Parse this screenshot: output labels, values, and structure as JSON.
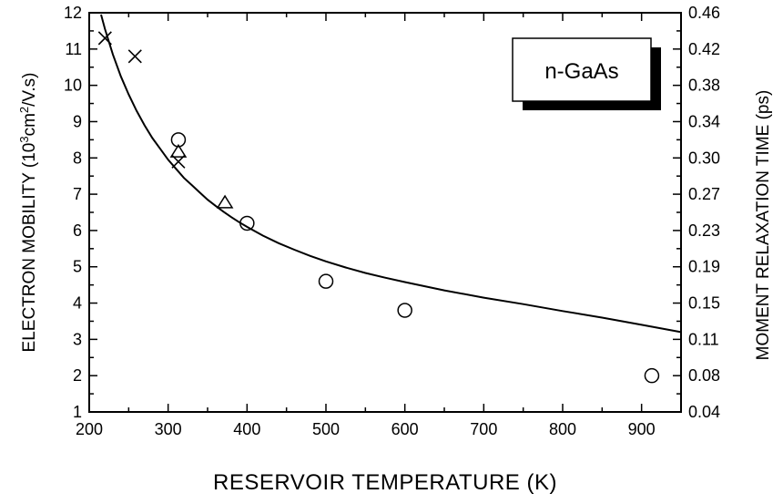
{
  "chart_data": {
    "type": "scatter",
    "legend_box": {
      "text": "n-GaAs",
      "position": "top-right"
    },
    "x_axis": {
      "label": "RESERVOIR TEMPERATURE (K)",
      "range": [
        200,
        950
      ],
      "ticks": [
        200,
        300,
        400,
        500,
        600,
        700,
        800,
        900
      ]
    },
    "y_axis_left": {
      "label_prefix": "ELECTRON MOBILITY (10",
      "label_sup1": "3",
      "label_mid": "cm",
      "label_sup2": "2",
      "label_suffix": "/V.s)",
      "range": [
        1,
        12
      ],
      "ticks": [
        1,
        2,
        3,
        4,
        5,
        6,
        7,
        8,
        9,
        10,
        11,
        12
      ]
    },
    "y_axis_right": {
      "label": "MOMENT RELAXATION TIME (ps)",
      "tick_labels": [
        "0.04",
        "0.08",
        "0.11",
        "0.15",
        "0.19",
        "0.23",
        "0.27",
        "0.30",
        "0.34",
        "0.38",
        "0.42",
        "0.46"
      ]
    },
    "grid": false,
    "series": [
      {
        "marker": "cross",
        "points": [
          [
            220,
            11.3
          ],
          [
            258,
            10.8
          ],
          [
            313,
            7.9
          ]
        ]
      },
      {
        "marker": "circle",
        "points": [
          [
            313,
            8.5
          ],
          [
            400,
            6.2
          ],
          [
            500,
            4.6
          ],
          [
            600,
            3.8
          ],
          [
            913,
            2.0
          ]
        ]
      },
      {
        "marker": "triangle",
        "points": [
          [
            313,
            8.15
          ],
          [
            372,
            6.75
          ]
        ]
      },
      {
        "marker": "line",
        "points": [
          [
            215,
            11.95
          ],
          [
            220,
            11.55
          ],
          [
            230,
            10.85
          ],
          [
            240,
            10.25
          ],
          [
            250,
            9.75
          ],
          [
            260,
            9.3
          ],
          [
            270,
            8.9
          ],
          [
            280,
            8.55
          ],
          [
            290,
            8.25
          ],
          [
            300,
            7.95
          ],
          [
            310,
            7.7
          ],
          [
            320,
            7.45
          ],
          [
            330,
            7.25
          ],
          [
            340,
            7.05
          ],
          [
            350,
            6.85
          ],
          [
            360,
            6.68
          ],
          [
            370,
            6.52
          ],
          [
            380,
            6.37
          ],
          [
            390,
            6.23
          ],
          [
            400,
            6.1
          ],
          [
            420,
            5.86
          ],
          [
            440,
            5.65
          ],
          [
            460,
            5.47
          ],
          [
            480,
            5.3
          ],
          [
            500,
            5.15
          ],
          [
            525,
            4.98
          ],
          [
            550,
            4.83
          ],
          [
            575,
            4.7
          ],
          [
            600,
            4.58
          ],
          [
            650,
            4.35
          ],
          [
            700,
            4.15
          ],
          [
            750,
            3.97
          ],
          [
            800,
            3.78
          ],
          [
            850,
            3.6
          ],
          [
            900,
            3.4
          ],
          [
            950,
            3.2
          ]
        ]
      }
    ]
  }
}
